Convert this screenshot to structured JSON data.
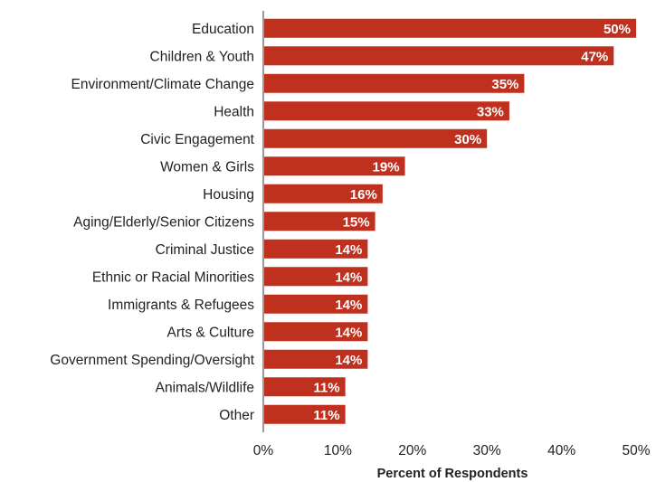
{
  "chart_data": {
    "type": "bar",
    "orientation": "horizontal",
    "categories": [
      "Education",
      "Children & Youth",
      "Environment/Climate Change",
      "Health",
      "Civic Engagement",
      "Women & Girls",
      "Housing",
      "Aging/Elderly/Senior Citizens",
      "Criminal Justice",
      "Ethnic or Racial Minorities",
      "Immigrants & Refugees",
      "Arts & Culture",
      "Government Spending/Oversight",
      "Animals/Wildlife",
      "Other"
    ],
    "values": [
      50,
      47,
      35,
      33,
      30,
      19,
      16,
      15,
      14,
      14,
      14,
      14,
      14,
      11,
      11
    ],
    "value_labels": [
      "50%",
      "47%",
      "35%",
      "33%",
      "30%",
      "19%",
      "16%",
      "15%",
      "14%",
      "14%",
      "14%",
      "14%",
      "14%",
      "11%",
      "11%"
    ],
    "xlabel": "Percent of Respondents",
    "ylabel": "",
    "xlim": [
      0,
      50
    ],
    "xticks": [
      0,
      10,
      20,
      30,
      40,
      50
    ],
    "xtick_labels": [
      "0%",
      "10%",
      "20%",
      "30%",
      "40%",
      "50%"
    ],
    "grid": false,
    "colors": {
      "bar": "#c0301f",
      "axis": "#333333",
      "value_text": "#ffffff"
    }
  }
}
